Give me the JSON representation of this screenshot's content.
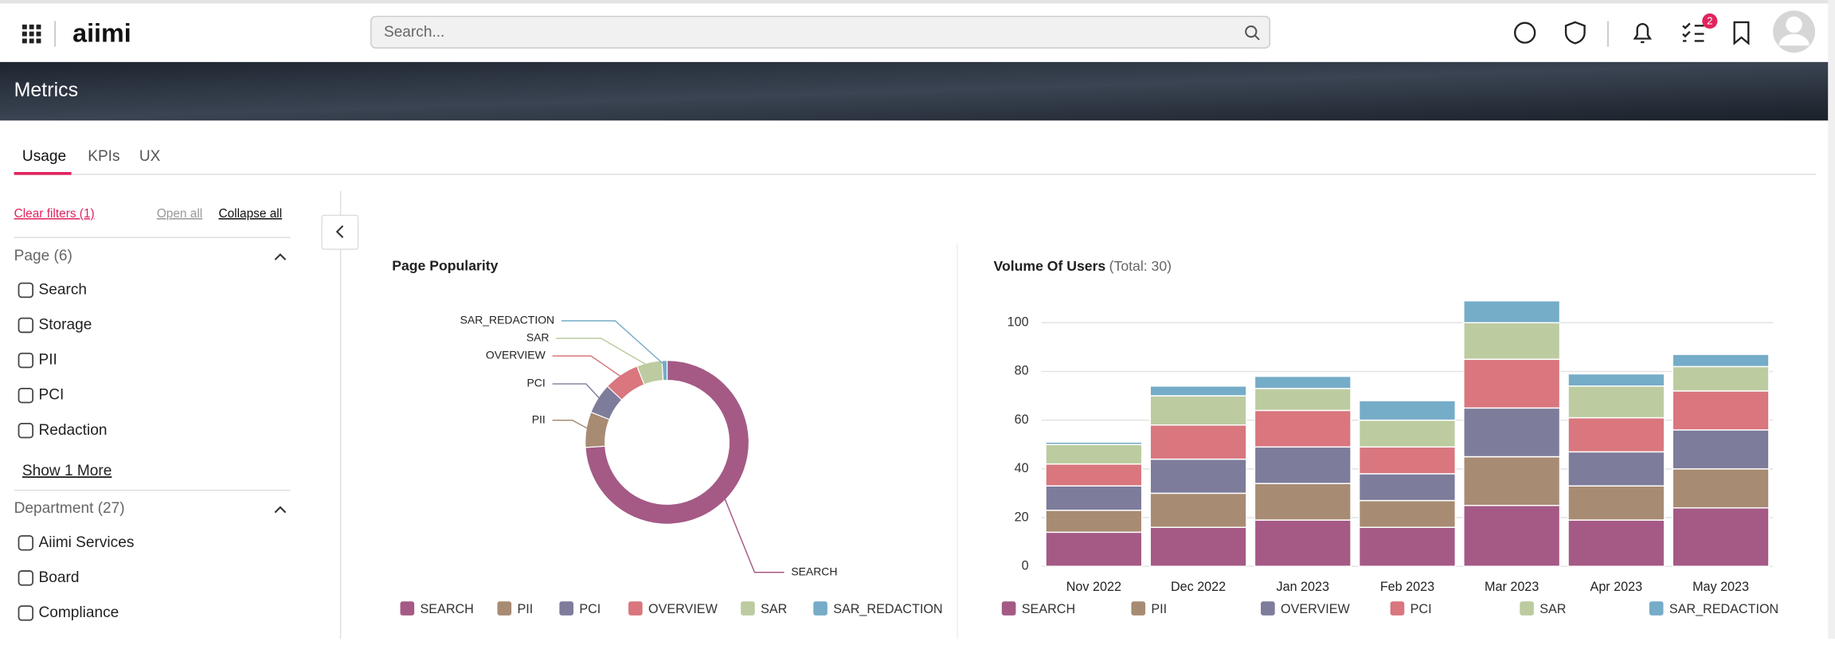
{
  "header": {
    "logo": "aiimi",
    "search_placeholder": "Search...",
    "tasks_badge": "2"
  },
  "banner": {
    "title": "Metrics"
  },
  "tabs": [
    "Usage",
    "KPIs",
    "UX"
  ],
  "filters": {
    "clear": "Clear filters (1)",
    "open_all": "Open all",
    "collapse_all": "Collapse all",
    "groups": [
      {
        "title": "Page (6)",
        "items": [
          "Search",
          "Storage",
          "PII",
          "PCI",
          "Redaction"
        ],
        "show_more": "Show 1 More"
      },
      {
        "title": "Department (27)",
        "items": [
          "Aiimi Services",
          "Board",
          "Compliance"
        ]
      }
    ]
  },
  "chart_data": [
    {
      "type": "pie",
      "title": "Page Popularity",
      "donut": true,
      "categories": [
        "SEARCH",
        "PII",
        "PCI",
        "OVERVIEW",
        "SAR",
        "SAR_REDACTION"
      ],
      "values": [
        74,
        7,
        6,
        7,
        5,
        1
      ],
      "colors": [
        "#a45a85",
        "#a88b73",
        "#7e7c9b",
        "#d9767e",
        "#bccca0",
        "#75acc7"
      ]
    },
    {
      "type": "bar",
      "stacked": true,
      "title": "Volume Of Users",
      "subtitle": "(Total: 30)",
      "categories": [
        "Nov 2022",
        "Dec 2022",
        "Jan 2023",
        "Feb 2023",
        "Mar 2023",
        "Apr 2023",
        "May 2023"
      ],
      "series": [
        {
          "name": "SEARCH",
          "color": "#a45a85",
          "values": [
            14,
            16,
            19,
            16,
            25,
            19,
            24
          ]
        },
        {
          "name": "PII",
          "color": "#a88b73",
          "values": [
            9,
            14,
            15,
            11,
            20,
            14,
            16
          ]
        },
        {
          "name": "OVERVIEW",
          "color": "#7e7c9b",
          "values": [
            10,
            14,
            15,
            11,
            20,
            14,
            16
          ]
        },
        {
          "name": "PCI",
          "color": "#d9767e",
          "values": [
            9,
            14,
            15,
            11,
            20,
            14,
            16
          ]
        },
        {
          "name": "SAR",
          "color": "#bccca0",
          "values": [
            8,
            12,
            9,
            11,
            15,
            13,
            10
          ]
        },
        {
          "name": "SAR_REDACTION",
          "color": "#75acc7",
          "values": [
            1,
            4,
            5,
            8,
            9,
            5,
            5
          ]
        }
      ],
      "ylim": [
        0,
        110
      ],
      "yticks": [
        0,
        20,
        40,
        60,
        80,
        100
      ],
      "grid": true
    }
  ]
}
